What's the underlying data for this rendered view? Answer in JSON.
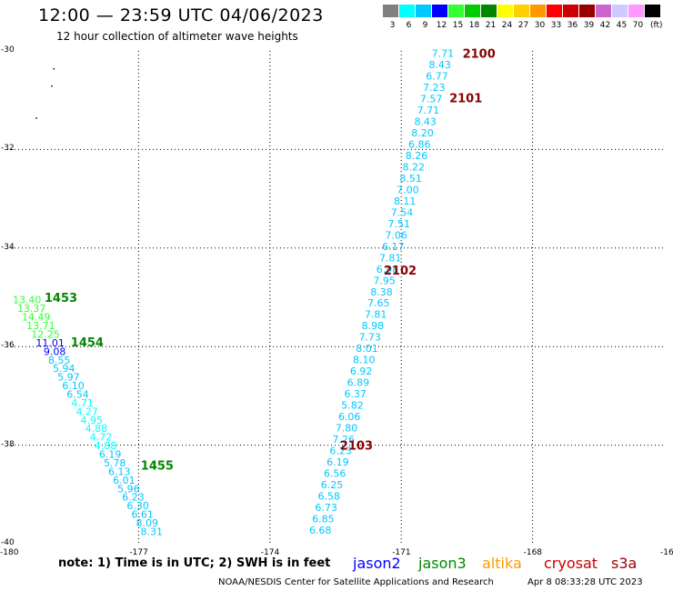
{
  "header": {
    "title": "12:00 — 23:59 UTC 04/06/2023",
    "subtitle": "12 hour collection of altimeter wave heights"
  },
  "legend": {
    "unit": "(ft)",
    "bins": [
      {
        "label": "3",
        "color": "#808080"
      },
      {
        "label": "6",
        "color": "#00ffff"
      },
      {
        "label": "9",
        "color": "#00c8ff"
      },
      {
        "label": "12",
        "color": "#0000ff"
      },
      {
        "label": "15",
        "color": "#33ff33"
      },
      {
        "label": "18",
        "color": "#00cc00"
      },
      {
        "label": "21",
        "color": "#008800"
      },
      {
        "label": "24",
        "color": "#ffff00"
      },
      {
        "label": "27",
        "color": "#ffd000"
      },
      {
        "label": "30",
        "color": "#ff9900"
      },
      {
        "label": "33",
        "color": "#ff0000"
      },
      {
        "label": "36",
        "color": "#cc0000"
      },
      {
        "label": "39",
        "color": "#990000"
      },
      {
        "label": "42",
        "color": "#cc66cc"
      },
      {
        "label": "45",
        "color": "#ccccff"
      },
      {
        "label": "70",
        "color": "#ff99ff"
      },
      {
        "label": "",
        "color": "#000000"
      }
    ]
  },
  "axes": {
    "lat_ticks": [
      "-30",
      "-32",
      "-34",
      "-36",
      "-38",
      "-40"
    ],
    "lon_ticks": [
      "-180",
      "-177",
      "-174",
      "-171",
      "-168",
      "-16"
    ],
    "lat_range": [
      -40,
      -30
    ],
    "lon_range": [
      -180,
      -165
    ]
  },
  "track_labels": [
    {
      "text": "2100",
      "lon": -169.6,
      "lat": -30.05
    },
    {
      "text": "2101",
      "lon": -169.9,
      "lat": -30.95
    },
    {
      "text": "2102",
      "lon": -171.4,
      "lat": -34.45
    },
    {
      "text": "2103",
      "lon": -172.4,
      "lat": -38.0
    },
    {
      "text": "1453",
      "lon": -179.15,
      "lat": -35.0
    },
    {
      "text": "1454",
      "lon": -178.55,
      "lat": -35.9
    },
    {
      "text": "1455",
      "lon": -176.95,
      "lat": -38.4
    }
  ],
  "tracks": [
    {
      "start": {
        "lon": -170.05,
        "lat": -30.05
      },
      "end": {
        "lon": -172.85,
        "lat": -39.72
      },
      "swh": [
        "7.71",
        "8.43",
        "6.77",
        "7.23",
        "7.57",
        "7.71",
        "8.43",
        "8.20",
        "6.86",
        "8.26",
        "8.22",
        "8.51",
        "7.00",
        "8.11",
        "7.54",
        "7.51",
        "7.06",
        "6.17",
        "7.81",
        "6.98",
        "7.95",
        "8.38",
        "7.65",
        "7.81",
        "8.98",
        "7.73",
        "8.01",
        "8.10",
        "6.92",
        "6.89",
        "6.37",
        "5.82",
        "6.06",
        "7.80",
        "7.26",
        "6.23",
        "6.19",
        "6.56",
        "6.25",
        "6.58",
        "6.73",
        "6.85",
        "6.68"
      ],
      "colors": [
        "#00c8ff",
        "#00c8ff",
        "#00c8ff",
        "#00c8ff",
        "#00c8ff",
        "#00c8ff",
        "#00c8ff",
        "#00c8ff",
        "#00c8ff",
        "#00c8ff",
        "#00c8ff",
        "#00c8ff",
        "#00c8ff",
        "#00c8ff",
        "#00c8ff",
        "#00c8ff",
        "#00c8ff",
        "#00c8ff",
        "#00c8ff",
        "#00c8ff",
        "#00c8ff",
        "#00c8ff",
        "#00c8ff",
        "#00c8ff",
        "#00c8ff",
        "#00c8ff",
        "#00c8ff",
        "#00c8ff",
        "#00c8ff",
        "#00c8ff",
        "#00c8ff",
        "#00c8ff",
        "#00c8ff",
        "#00c8ff",
        "#00c8ff",
        "#00c8ff",
        "#00c8ff",
        "#00c8ff",
        "#00c8ff",
        "#00c8ff",
        "#00c8ff",
        "#00c8ff",
        "#00c8ff"
      ]
    },
    {
      "start": {
        "lon": -179.55,
        "lat": -35.05
      },
      "end": {
        "lon": -176.7,
        "lat": -39.75
      },
      "swh": [
        "13.40",
        "13.37",
        "14.49",
        "13.71",
        "12.25",
        "11.01",
        "9.08",
        "8.55",
        "5.94",
        "5.97",
        "6.10",
        "6.54",
        "4.71",
        "4.27",
        "4.95",
        "4.88",
        "4.72",
        "4.88",
        "6.19",
        "5.78",
        "6.13",
        "6.01",
        "5.96",
        "6.23",
        "6.30",
        "6.61",
        "8.09",
        "8.31"
      ],
      "colors": [
        "#33ff33",
        "#33ff33",
        "#33ff33",
        "#33ff33",
        "#33ff33",
        "#0000ff",
        "#0000ff",
        "#00c8ff",
        "#00c8ff",
        "#00c8ff",
        "#00c8ff",
        "#00c8ff",
        "#00ffff",
        "#00ffff",
        "#00ffff",
        "#00ffff",
        "#00ffff",
        "#00ffff",
        "#00c8ff",
        "#00c8ff",
        "#00c8ff",
        "#00c8ff",
        "#00c8ff",
        "#00c8ff",
        "#00c8ff",
        "#00c8ff",
        "#00c8ff",
        "#00c8ff"
      ]
    }
  ],
  "footer": {
    "note": "note:  1) Time is in UTC;  2) SWH is in feet",
    "satellites": [
      {
        "name": "jason2",
        "color": "#0000ff"
      },
      {
        "name": "jason3",
        "color": "#008800"
      },
      {
        "name": "altika",
        "color": "#ff9900"
      },
      {
        "name": "cryosat",
        "color": "#cc0000"
      },
      {
        "name": "s3a",
        "color": "#990000"
      }
    ],
    "credit": "NOAA/NESDIS Center for Satellite Applications and Research",
    "timestamp": "Apr  8 08:33:28 UTC 2023"
  }
}
